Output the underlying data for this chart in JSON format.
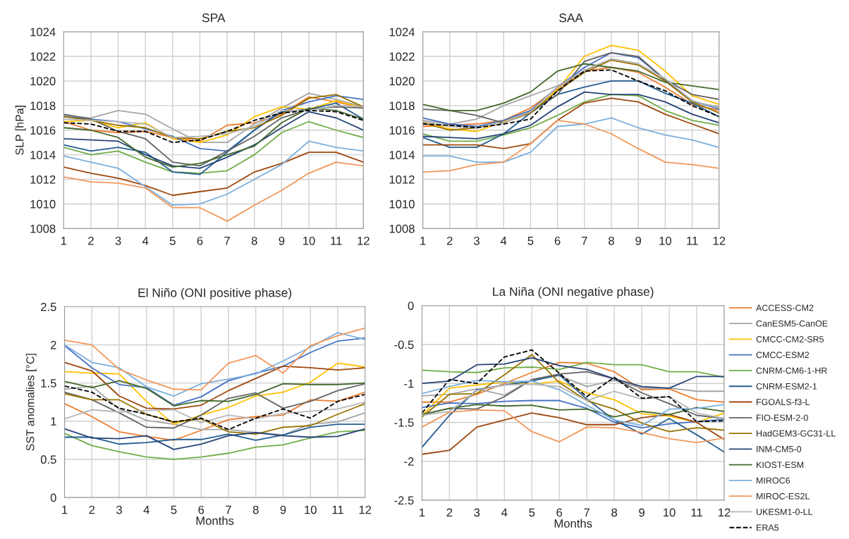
{
  "chart_data": [
    {
      "type": "line",
      "title": "SPA",
      "ylabel": "SLP [hPa]",
      "categories": [
        "1",
        "2",
        "3",
        "4",
        "5",
        "6",
        "7",
        "8",
        "9",
        "10",
        "11",
        "12"
      ],
      "ylim": [
        1008,
        1024
      ],
      "yticks": [
        1008,
        1010,
        1012,
        1014,
        1016,
        1018,
        1020,
        1022,
        1024
      ],
      "grid": true,
      "series": [
        {
          "color": "#ed7d31",
          "values": [
            1016.7,
            1016.0,
            1015.8,
            1015.9,
            1015.4,
            1015.1,
            1016.4,
            1016.6,
            1017.3,
            1018.7,
            1018.3,
            1017.8
          ]
        },
        {
          "color": "#a5a5a5",
          "values": [
            1017.2,
            1017.0,
            1017.6,
            1017.3,
            1016.1,
            1015.0,
            1015.0,
            1016.5,
            1017.8,
            1019.0,
            1018.5,
            1017.9
          ]
        },
        {
          "color": "#ffc000",
          "values": [
            1016.7,
            1016.8,
            1016.2,
            1016.6,
            1015.3,
            1015.0,
            1015.6,
            1017.1,
            1017.9,
            1017.7,
            1018.4,
            1017.8
          ]
        },
        {
          "color": "#4472c4",
          "values": [
            1017.1,
            1016.9,
            1016.7,
            1016.1,
            1015.5,
            1014.5,
            1014.3,
            1016.0,
            1017.6,
            1018.3,
            1018.8,
            1018.5
          ]
        },
        {
          "color": "#70ad47",
          "values": [
            1014.6,
            1014.0,
            1014.3,
            1013.4,
            1012.6,
            1012.5,
            1012.7,
            1014.0,
            1015.8,
            1016.7,
            1016.0,
            1015.4
          ]
        },
        {
          "color": "#255e91",
          "values": [
            1014.8,
            1014.3,
            1014.6,
            1014.2,
            1012.6,
            1012.4,
            1014.2,
            1016.0,
            1017.5,
            1017.7,
            1018.2,
            1016.9
          ]
        },
        {
          "color": "#9e480e",
          "values": [
            1013.0,
            1012.5,
            1012.1,
            1011.5,
            1010.7,
            1011.0,
            1011.3,
            1012.6,
            1013.3,
            1014.2,
            1014.2,
            1013.4
          ]
        },
        {
          "color": "#636363",
          "values": [
            1017.3,
            1016.9,
            1015.9,
            1015.3,
            1013.4,
            1013.1,
            1014.3,
            1015.5,
            1017.0,
            1017.7,
            1017.9,
            1017.8
          ]
        },
        {
          "color": "#997300",
          "values": [
            1017.1,
            1016.8,
            1016.4,
            1016.2,
            1015.4,
            1015.3,
            1015.9,
            1016.2,
            1017.2,
            1018.6,
            1018.9,
            1017.9
          ]
        },
        {
          "color": "#264478",
          "values": [
            1015.3,
            1015.2,
            1015.1,
            1014.0,
            1013.1,
            1012.9,
            1013.8,
            1014.8,
            1016.2,
            1017.5,
            1017.0,
            1016.0
          ]
        },
        {
          "color": "#43682b",
          "values": [
            1016.2,
            1016.0,
            1015.4,
            1013.8,
            1013.0,
            1013.3,
            1014.0,
            1014.7,
            1016.6,
            1017.8,
            1017.6,
            1016.9
          ]
        },
        {
          "color": "#7cafdd",
          "values": [
            1013.9,
            1013.4,
            1012.9,
            1011.4,
            1009.9,
            1010.0,
            1010.8,
            1012.0,
            1013.2,
            1015.1,
            1014.6,
            1014.3
          ]
        },
        {
          "color": "#f1975a",
          "values": [
            1012.2,
            1011.8,
            1011.7,
            1011.3,
            1009.7,
            1009.7,
            1008.6,
            1009.9,
            1011.1,
            1012.5,
            1013.4,
            1013.1
          ]
        },
        {
          "color": "#b7b7b7",
          "values": [
            1016.9,
            1016.8,
            1016.7,
            1016.5,
            1015.4,
            1015.5,
            1015.7,
            1016.3,
            1017.6,
            1017.6,
            1018.0,
            1017.9
          ]
        },
        {
          "color": "#000000",
          "line_style": "dashed",
          "values": [
            1016.6,
            1016.5,
            1015.9,
            1015.9,
            1015.0,
            1015.2,
            1015.9,
            1016.8,
            1017.4,
            1017.6,
            1017.5,
            1016.8
          ]
        }
      ]
    },
    {
      "type": "line",
      "title": "SAA",
      "categories": [
        "1",
        "2",
        "3",
        "4",
        "5",
        "6",
        "7",
        "8",
        "9",
        "10",
        "11",
        "12"
      ],
      "ylim": [
        1008,
        1024
      ],
      "yticks": [
        1008,
        1010,
        1012,
        1014,
        1016,
        1018,
        1020,
        1022,
        1024
      ],
      "grid": true,
      "series": [
        {
          "color": "#ed7d31",
          "values": [
            1016.3,
            1016.4,
            1016.5,
            1016.8,
            1017.8,
            1019.4,
            1020.8,
            1021.1,
            1020.7,
            1019.5,
            1018.1,
            1017.6
          ]
        },
        {
          "color": "#a5a5a5",
          "values": [
            1016.8,
            1016.5,
            1016.9,
            1018.0,
            1018.8,
            1019.6,
            1020.8,
            1021.8,
            1021.4,
            1020.0,
            1018.3,
            1017.9
          ]
        },
        {
          "color": "#ffc000",
          "values": [
            1016.6,
            1016.1,
            1015.9,
            1016.7,
            1017.4,
            1019.3,
            1022.0,
            1022.9,
            1022.5,
            1020.8,
            1018.8,
            1018.1
          ]
        },
        {
          "color": "#4472c4",
          "values": [
            1017.0,
            1016.5,
            1016.3,
            1016.8,
            1017.6,
            1019.5,
            1021.1,
            1022.3,
            1021.9,
            1020.1,
            1018.4,
            1017.7
          ]
        },
        {
          "color": "#70ad47",
          "values": [
            1015.7,
            1015.1,
            1015.1,
            1015.6,
            1016.2,
            1017.2,
            1018.3,
            1018.9,
            1018.8,
            1017.6,
            1016.8,
            1016.4
          ]
        },
        {
          "color": "#255e91",
          "values": [
            1015.4,
            1014.6,
            1014.6,
            1015.7,
            1017.4,
            1018.9,
            1019.5,
            1020.0,
            1020.0,
            1019.0,
            1018.2,
            1017.1
          ]
        },
        {
          "color": "#9e480e",
          "values": [
            1014.8,
            1014.8,
            1014.8,
            1014.5,
            1014.9,
            1016.8,
            1018.2,
            1018.6,
            1018.3,
            1017.3,
            1016.5,
            1015.7
          ]
        },
        {
          "color": "#636363",
          "values": [
            1017.7,
            1017.6,
            1017.2,
            1016.6,
            1017.5,
            1018.9,
            1021.6,
            1022.3,
            1022.0,
            1020.1,
            1018.9,
            1018.5
          ]
        },
        {
          "color": "#997300",
          "values": [
            1016.6,
            1016.0,
            1016.2,
            1016.6,
            1017.4,
            1019.2,
            1020.7,
            1021.7,
            1021.3,
            1020.0,
            1018.3,
            1017.4
          ]
        },
        {
          "color": "#264478",
          "values": [
            1015.5,
            1015.4,
            1015.3,
            1015.7,
            1016.4,
            1017.9,
            1019.1,
            1018.9,
            1018.9,
            1018.3,
            1017.3,
            1016.6
          ]
        },
        {
          "color": "#43682b",
          "values": [
            1018.1,
            1017.6,
            1017.6,
            1018.2,
            1019.1,
            1020.8,
            1021.4,
            1021.1,
            1020.8,
            1019.9,
            1019.6,
            1019.3
          ]
        },
        {
          "color": "#7cafdd",
          "values": [
            1013.9,
            1013.9,
            1013.4,
            1013.4,
            1014.2,
            1016.3,
            1016.5,
            1017.0,
            1016.2,
            1015.6,
            1015.2,
            1014.6
          ]
        },
        {
          "color": "#f1975a",
          "values": [
            1012.6,
            1012.7,
            1013.2,
            1013.4,
            1014.9,
            1016.8,
            1016.5,
            1015.7,
            1014.5,
            1013.4,
            1013.2,
            1012.9
          ]
        },
        {
          "color": "#b7b7b7",
          "values": [
            1016.7,
            1016.3,
            1016.2,
            1016.6,
            1017.5,
            1019.5,
            1020.9,
            1021.8,
            1021.4,
            1020.2,
            1018.4,
            1017.8
          ]
        },
        {
          "color": "#000000",
          "line_style": "dashed",
          "values": [
            1016.5,
            1016.4,
            1016.2,
            1016.5,
            1016.9,
            1019.2,
            1020.8,
            1020.9,
            1020.0,
            1019.2,
            1018.0,
            1017.1
          ]
        }
      ]
    },
    {
      "type": "line",
      "title": "El Niño (ONI positive phase)",
      "ylabel": "SST anomalies [°C]",
      "xlabel": "Months",
      "categories": [
        "1",
        "2",
        "3",
        "4",
        "5",
        "6",
        "7",
        "8",
        "9",
        "10",
        "11",
        "12"
      ],
      "ylim": [
        0,
        2.5
      ],
      "yticks": [
        0,
        0.5,
        1,
        1.5,
        2,
        2.5
      ],
      "grid": true,
      "series": [
        {
          "color": "#ed7d31",
          "values": [
            1.23,
            1.06,
            0.86,
            0.8,
            0.75,
            0.88,
            1.02,
            1.06,
            1.08,
            1.28,
            1.26,
            1.38
          ]
        },
        {
          "color": "#a5a5a5",
          "values": [
            1.42,
            1.46,
            1.16,
            1.01,
            0.96,
            0.89,
            0.89,
            0.85,
            0.82,
            0.96,
            0.99,
            1.11
          ]
        },
        {
          "color": "#ffc000",
          "values": [
            1.65,
            1.63,
            1.62,
            1.26,
            0.96,
            1.08,
            1.18,
            1.33,
            1.38,
            1.51,
            1.76,
            1.71
          ]
        },
        {
          "color": "#4472c4",
          "values": [
            1.99,
            1.7,
            1.48,
            1.44,
            1.21,
            1.32,
            1.53,
            1.63,
            1.72,
            1.9,
            2.05,
            2.09
          ]
        },
        {
          "color": "#70ad47",
          "values": [
            0.84,
            0.68,
            0.6,
            0.53,
            0.5,
            0.53,
            0.58,
            0.66,
            0.69,
            0.78,
            0.86,
            0.88
          ]
        },
        {
          "color": "#255e91",
          "values": [
            0.79,
            0.79,
            0.7,
            0.72,
            0.76,
            0.76,
            0.83,
            0.75,
            0.82,
            0.92,
            0.96,
            0.96
          ]
        },
        {
          "color": "#9e480e",
          "values": [
            1.77,
            1.66,
            1.33,
            1.17,
            1.16,
            1.21,
            1.4,
            1.56,
            1.72,
            1.7,
            1.67,
            1.7
          ]
        },
        {
          "color": "#636363",
          "values": [
            1.38,
            1.28,
            1.11,
            0.92,
            0.91,
            1.08,
            1.3,
            1.37,
            1.17,
            1.26,
            1.4,
            1.49
          ]
        },
        {
          "color": "#997300",
          "values": [
            1.36,
            1.28,
            1.28,
            1.09,
            0.99,
            1.03,
            0.86,
            0.83,
            0.92,
            0.94,
            1.09,
            1.23
          ]
        },
        {
          "color": "#264478",
          "values": [
            0.9,
            0.78,
            0.77,
            0.81,
            0.63,
            0.7,
            0.81,
            0.85,
            0.81,
            0.79,
            0.8,
            0.9
          ]
        },
        {
          "color": "#43682b",
          "values": [
            1.52,
            1.44,
            1.53,
            1.43,
            1.2,
            1.27,
            1.26,
            1.35,
            1.49,
            1.48,
            1.48,
            1.5
          ]
        },
        {
          "color": "#7cafdd",
          "values": [
            2.0,
            1.77,
            1.7,
            1.45,
            1.33,
            1.49,
            1.55,
            1.62,
            1.79,
            1.97,
            2.16,
            2.07
          ]
        },
        {
          "color": "#f1975a",
          "values": [
            2.06,
            2.0,
            1.68,
            1.54,
            1.42,
            1.41,
            1.76,
            1.86,
            1.63,
            1.99,
            2.12,
            2.22
          ]
        },
        {
          "color": "#b7b7b7",
          "values": [
            1.03,
            1.15,
            1.12,
            1.14,
            1.15,
            0.98,
            1.08,
            1.03,
            1.1,
            1.13,
            1.16,
            1.25
          ]
        },
        {
          "color": "#000000",
          "line_style": "dashed",
          "values": [
            1.46,
            1.38,
            1.17,
            1.09,
            0.99,
            1.04,
            0.89,
            1.04,
            1.16,
            1.04,
            1.26,
            1.35
          ]
        }
      ]
    },
    {
      "type": "line",
      "title": "La Niña (ONI negative phase)",
      "xlabel": "Months",
      "categories": [
        "1",
        "2",
        "3",
        "4",
        "5",
        "6",
        "7",
        "8",
        "9",
        "10",
        "11",
        "12"
      ],
      "ylim": [
        -2.5,
        0
      ],
      "yticks": [
        -2.5,
        -2,
        -1.5,
        -1,
        -0.5,
        0
      ],
      "grid": true,
      "legend": "right",
      "series": [
        {
          "name": "ACCESS-CM2",
          "color": "#ed7d31",
          "values": [
            -1.24,
            -1.24,
            -1.14,
            -1.0,
            -0.86,
            -0.73,
            -0.74,
            -0.85,
            -1.08,
            -1.07,
            -1.21,
            -1.24
          ]
        },
        {
          "name": "CanESM5-CanOE",
          "color": "#a5a5a5",
          "values": [
            -1.16,
            -1.14,
            -1.07,
            -1.15,
            -0.95,
            -0.9,
            -1.04,
            -0.96,
            -1.06,
            -1.06,
            -1.1,
            -1.1
          ]
        },
        {
          "name": "CMCC-CM2-SR5",
          "color": "#ffc000",
          "values": [
            -1.41,
            -1.06,
            -1.02,
            -0.98,
            -1.01,
            -0.97,
            -1.12,
            -1.21,
            -1.39,
            -1.42,
            -1.5,
            -1.38
          ]
        },
        {
          "name": "CMCC-ESM2",
          "color": "#4472c4",
          "values": [
            -1.31,
            -1.25,
            -1.26,
            -1.23,
            -1.22,
            -1.22,
            -1.32,
            -1.5,
            -1.57,
            -1.52,
            -1.49,
            -1.46
          ]
        },
        {
          "name": "CNRM-CM6-1-HR",
          "color": "#70ad47",
          "values": [
            -0.83,
            -0.85,
            -0.86,
            -0.8,
            -0.79,
            -0.82,
            -0.73,
            -0.76,
            -0.76,
            -0.85,
            -0.85,
            -0.92
          ]
        },
        {
          "name": "CNRM-ESM2-1",
          "color": "#255e91",
          "values": [
            -1.82,
            -1.41,
            -1.08,
            -1.02,
            -0.97,
            -0.89,
            -1.2,
            -1.47,
            -1.65,
            -1.45,
            -1.66,
            -1.88
          ]
        },
        {
          "name": "FGOALS-f3-L",
          "color": "#9e480e",
          "values": [
            -1.91,
            -1.86,
            -1.56,
            -1.47,
            -1.38,
            -1.44,
            -1.53,
            -1.53,
            -1.44,
            -1.4,
            -1.5,
            -1.72
          ]
        },
        {
          "name": "FIO-ESM-2-0",
          "color": "#636363",
          "values": [
            -1.4,
            -1.32,
            -1.33,
            -1.17,
            -0.95,
            -0.88,
            -0.85,
            -0.94,
            -1.12,
            -1.26,
            -1.41,
            -1.45
          ]
        },
        {
          "name": "HadGEM3-GC31-LL",
          "color": "#997300",
          "values": [
            -1.43,
            -1.14,
            -1.13,
            -0.89,
            -0.63,
            -0.99,
            -1.22,
            -1.33,
            -1.51,
            -1.62,
            -1.57,
            -1.6
          ]
        },
        {
          "name": "INM-CM5-0",
          "color": "#264478",
          "values": [
            -1.0,
            -0.97,
            -0.76,
            -0.75,
            -0.67,
            -0.77,
            -0.82,
            -0.94,
            -1.04,
            -1.06,
            -0.91,
            -0.91
          ]
        },
        {
          "name": "KIOST-ESM",
          "color": "#43682b",
          "values": [
            -1.4,
            -1.32,
            -1.27,
            -1.29,
            -1.28,
            -1.34,
            -1.33,
            -1.43,
            -1.36,
            -1.4,
            -1.31,
            -1.36
          ]
        },
        {
          "name": "MIROC6",
          "color": "#7cafdd",
          "values": [
            -1.13,
            -1.04,
            -0.96,
            -0.98,
            -0.97,
            -1.08,
            -1.28,
            -1.47,
            -1.54,
            -1.33,
            -1.32,
            -1.27
          ]
        },
        {
          "name": "MIROC-ES2L",
          "color": "#f1975a",
          "values": [
            -1.56,
            -1.37,
            -1.34,
            -1.35,
            -1.62,
            -1.75,
            -1.56,
            -1.57,
            -1.63,
            -1.71,
            -1.76,
            -1.7
          ]
        },
        {
          "name": "UKESM1-0-LL",
          "color": "#b7b7b7",
          "values": [
            -1.41,
            -1.36,
            -1.09,
            -1.02,
            -1.01,
            -1.04,
            -1.22,
            -1.1,
            -1.2,
            -1.17,
            -1.38,
            -1.45
          ]
        },
        {
          "name": "ERA5",
          "color": "#000000",
          "line_style": "dashed",
          "values": [
            -1.38,
            -0.95,
            -1.0,
            -0.66,
            -0.57,
            -0.87,
            -1.17,
            -0.92,
            -1.19,
            -1.17,
            -1.49,
            -1.48
          ]
        }
      ]
    }
  ]
}
